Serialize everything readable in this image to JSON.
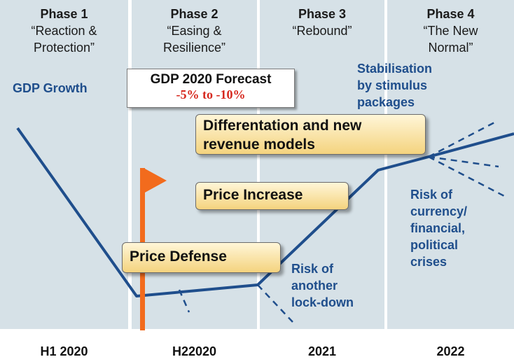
{
  "phases": [
    {
      "title": "Phase 1",
      "subtitle_lines": [
        "“Reaction &",
        "Protection”"
      ]
    },
    {
      "title": "Phase 2",
      "subtitle_lines": [
        "“Easing &",
        "Resilience”"
      ]
    },
    {
      "title": "Phase 3",
      "subtitle_lines": [
        "“Rebound”"
      ]
    },
    {
      "title": "Phase 4",
      "subtitle_lines": [
        "“The New",
        "Normal”"
      ]
    }
  ],
  "timeline": [
    "H1 2020",
    "H22020",
    "2021",
    "2022"
  ],
  "gdp_label": "GDP Growth",
  "forecast": {
    "title": "GDP 2020 Forecast",
    "range": "-5% to -10%"
  },
  "strategies": {
    "differentiation_lines": [
      "Differentation and new",
      "revenue models"
    ],
    "price_increase": "Price Increase",
    "price_defense": "Price Defense"
  },
  "annotations": {
    "stabilisation_lines": [
      "Stabilisation",
      "by stimulus",
      "packages"
    ],
    "currency_risk_lines": [
      "Risk of",
      "currency/",
      "financial,",
      "political",
      "crises"
    ],
    "lockdown_risk_lines": [
      "Risk of",
      "another",
      "lock-down"
    ]
  },
  "colors": {
    "gdp_line": "#1f4e8c",
    "flag": "#f26b1d",
    "phase_background": "#d6e1e7",
    "forecast_range": "#d6281e"
  },
  "icons": {
    "flag": "flag-icon"
  }
}
